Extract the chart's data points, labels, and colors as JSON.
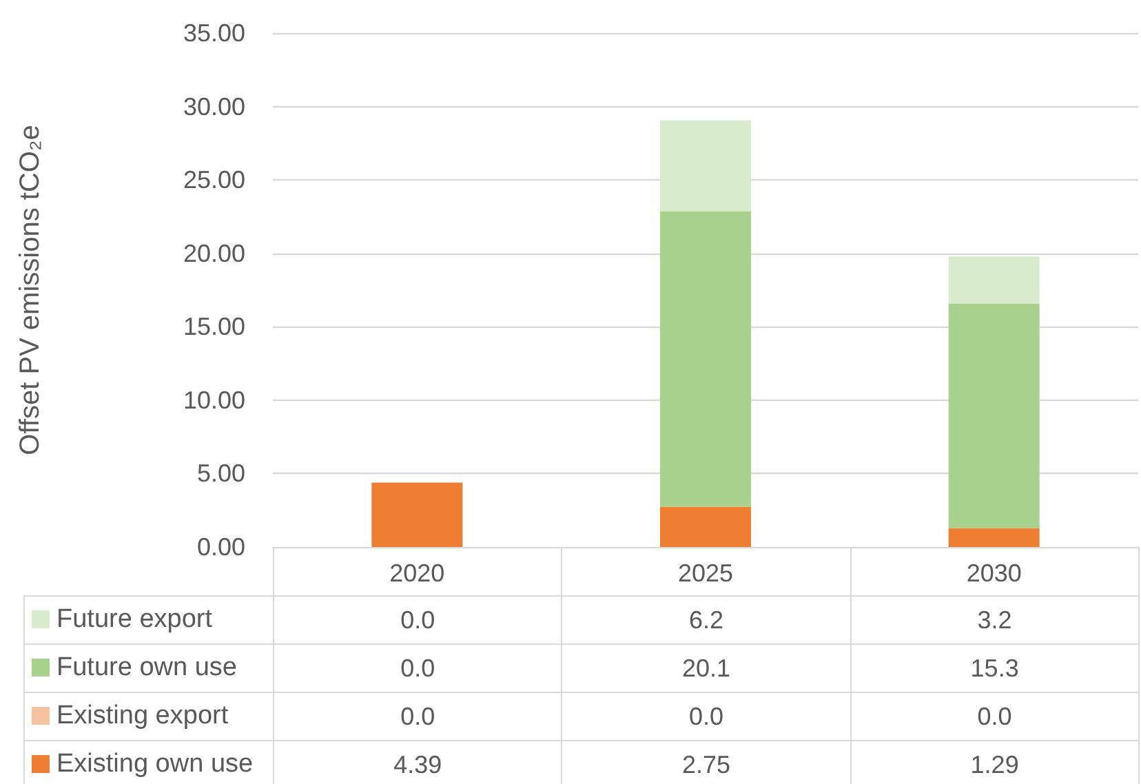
{
  "chart_data": {
    "type": "bar",
    "ylabel": "Offset PV emissions tCO₂e",
    "categories": [
      "2020",
      "2025",
      "2030"
    ],
    "stacked": true,
    "series": [
      {
        "name": "Existing own use",
        "color": "#ed7d31",
        "values": [
          4.39,
          2.75,
          1.29
        ],
        "value_labels": [
          "4.39",
          "2.75",
          "1.29"
        ]
      },
      {
        "name": "Existing export",
        "color": "#f7c4a2",
        "values": [
          0,
          0,
          0
        ],
        "value_labels": [
          "0.0",
          "0.0",
          "0.0"
        ]
      },
      {
        "name": "Future own use",
        "color": "#a9d18e",
        "values": [
          0,
          20.1,
          15.3
        ],
        "value_labels": [
          "0.0",
          "20.1",
          "15.3"
        ]
      },
      {
        "name": "Future export",
        "color": "#d8eacc",
        "values": [
          0,
          6.2,
          3.2
        ],
        "value_labels": [
          "0.0",
          "6.2",
          "3.2"
        ]
      }
    ],
    "ylim": [
      0,
      35
    ],
    "yticks": [
      {
        "value": 0,
        "label": "0.00"
      },
      {
        "value": 5,
        "label": "5.00"
      },
      {
        "value": 10,
        "label": "10.00"
      },
      {
        "value": 15,
        "label": "15.00"
      },
      {
        "value": 20,
        "label": "20.00"
      },
      {
        "value": 25,
        "label": "25.00"
      },
      {
        "value": 30,
        "label": "30.00"
      },
      {
        "value": 35,
        "label": "35.00"
      }
    ],
    "grid": "y",
    "legend": "bottom left"
  }
}
